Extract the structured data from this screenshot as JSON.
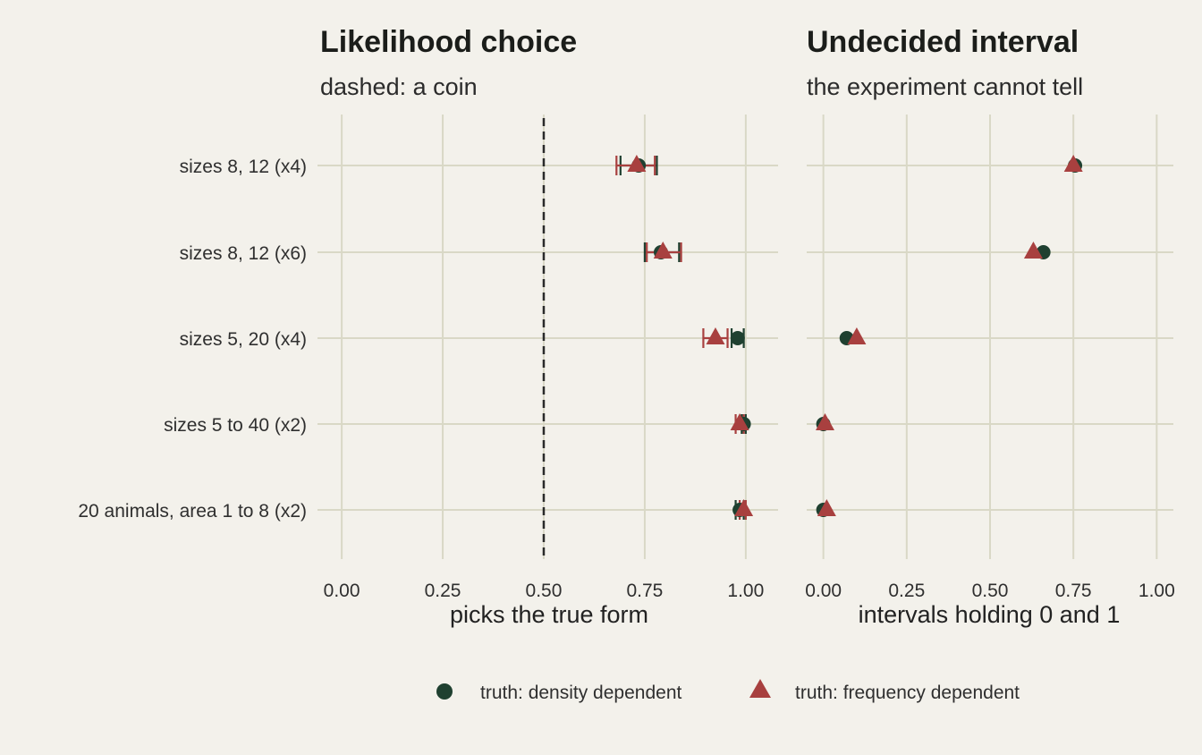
{
  "chart_data": {
    "type": "scatter",
    "categories": [
      "sizes 8, 12 (x4)",
      "sizes 8, 12 (x6)",
      "sizes 5, 20 (x4)",
      "sizes 5 to 40 (x2)",
      "20 animals, area 1 to 8 (x2)"
    ],
    "series_colors": {
      "density": "#1f4030",
      "frequency": "#a8403f"
    },
    "legend": {
      "position": "bottom",
      "items": [
        {
          "key": "density",
          "label": "truth: density dependent",
          "shape": "circle"
        },
        {
          "key": "frequency",
          "label": "truth: frequency dependent",
          "shape": "triangle"
        }
      ]
    },
    "panels": [
      {
        "id": "likelihood",
        "title": "Likelihood choice",
        "subtitle": "dashed: a coin",
        "xlabel": "picks the true form",
        "xlim": [
          -0.06,
          1.08
        ],
        "xticks": [
          "0.00",
          "0.25",
          "0.50",
          "0.75",
          "1.00"
        ],
        "reference_line": 0.5,
        "series": [
          {
            "key": "density",
            "name": "truth: density dependent",
            "values": [
              0.735,
              0.79,
              0.98,
              0.995,
              0.985
            ],
            "lower": [
              0.69,
              0.75,
              0.965,
              0.99,
              0.975
            ],
            "upper": [
              0.78,
              0.835,
              0.995,
              1.0,
              0.995
            ]
          },
          {
            "key": "frequency",
            "name": "truth: frequency dependent",
            "values": [
              0.73,
              0.795,
              0.925,
              0.985,
              0.995
            ],
            "lower": [
              0.68,
              0.755,
              0.895,
              0.975,
              0.985
            ],
            "upper": [
              0.775,
              0.84,
              0.955,
              0.995,
              1.0
            ]
          }
        ]
      },
      {
        "id": "undecided",
        "title": "Undecided interval",
        "subtitle": "the experiment cannot tell",
        "xlabel": "intervals holding 0 and 1",
        "xlim": [
          -0.05,
          1.05
        ],
        "xticks": [
          "0.00",
          "0.25",
          "0.50",
          "0.75",
          "1.00"
        ],
        "series": [
          {
            "key": "density",
            "name": "truth: density dependent",
            "values": [
              0.755,
              0.66,
              0.07,
              0.0,
              0.0
            ]
          },
          {
            "key": "frequency",
            "name": "truth: frequency dependent",
            "values": [
              0.75,
              0.63,
              0.1,
              0.005,
              0.01
            ]
          }
        ]
      }
    ]
  }
}
